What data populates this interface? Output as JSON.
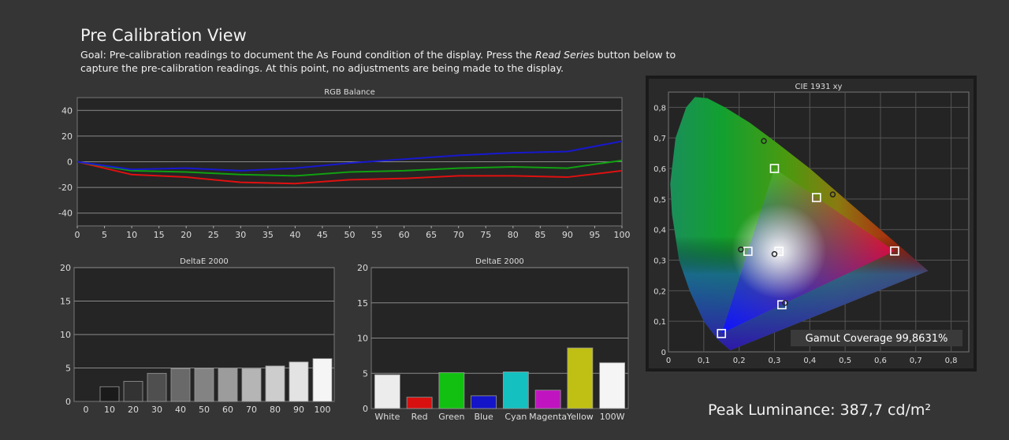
{
  "page": {
    "title": "Pre Calibration View",
    "goal_prefix": "Goal: Pre-calibration readings to document the As Found condition of the display. Press the ",
    "goal_button": "Read Series",
    "goal_suffix": " button below to capture the pre-calibration readings. At this point, no adjustments are being made to the display.",
    "peak_luminance": "Peak Luminance: 387,7 cd/m²"
  },
  "chart_data": [
    {
      "type": "line",
      "title": "RGB Balance",
      "x": [
        0,
        10,
        20,
        30,
        40,
        50,
        60,
        70,
        80,
        90,
        100
      ],
      "xticks": [
        "0",
        "5",
        "10",
        "15",
        "20",
        "25",
        "30",
        "35",
        "40",
        "45",
        "50",
        "55",
        "60",
        "65",
        "70",
        "75",
        "80",
        "85",
        "90",
        "95",
        "100"
      ],
      "yticks": [
        "40",
        "20",
        "0",
        "-20",
        "-40"
      ],
      "xlim": [
        0,
        100
      ],
      "ylim": [
        -50,
        50
      ],
      "grid": true,
      "series": [
        {
          "color": "#e01010",
          "values": [
            0,
            -10,
            -12,
            -16,
            -17,
            -14,
            -13,
            -11,
            -11,
            -12,
            -7
          ]
        },
        {
          "color": "#10a010",
          "values": [
            0,
            -7,
            -8,
            -10,
            -11,
            -8,
            -7,
            -5,
            -4,
            -5,
            1
          ]
        },
        {
          "color": "#1818d0",
          "values": [
            0,
            -6,
            -5,
            -7,
            -5,
            -1,
            2,
            5,
            7,
            8,
            16
          ]
        }
      ]
    },
    {
      "type": "bar",
      "title": "DeltaE 2000",
      "categories": [
        "0",
        "10",
        "20",
        "30",
        "40",
        "50",
        "60",
        "70",
        "80",
        "90",
        "100"
      ],
      "values": [
        0,
        2.2,
        3.0,
        4.2,
        4.9,
        4.9,
        4.9,
        4.9,
        5.3,
        5.9,
        6.4
      ],
      "colors": [
        "#000000",
        "#1a1a1a",
        "#333333",
        "#4f4f4f",
        "#696969",
        "#838383",
        "#9c9c9c",
        "#b5b5b5",
        "#cdcdcd",
        "#e3e3e3",
        "#f5f5f5"
      ],
      "yticks": [
        "20",
        "15",
        "10",
        "5",
        "0"
      ],
      "ylim": [
        0,
        20
      ]
    },
    {
      "type": "bar",
      "title": "DeltaE 2000",
      "categories": [
        "White",
        "Red",
        "Green",
        "Blue",
        "Cyan",
        "Magenta",
        "Yellow",
        "100W"
      ],
      "values": [
        4.8,
        1.6,
        5.1,
        1.8,
        5.2,
        2.6,
        8.6,
        6.5
      ],
      "colors": [
        "#ececec",
        "#d81010",
        "#12c012",
        "#1414c8",
        "#14c0c0",
        "#c014c0",
        "#c0c014",
        "#f5f5f5"
      ],
      "yticks": [
        "20",
        "15",
        "10",
        "5",
        "0"
      ],
      "ylim": [
        0,
        20
      ]
    },
    {
      "type": "scatter",
      "title": "CIE 1931 xy",
      "xticks": [
        "0",
        "0,1",
        "0,2",
        "0,3",
        "0,4",
        "0,5",
        "0,6",
        "0,7",
        "0,8"
      ],
      "yticks": [
        "0,8",
        "0,7",
        "0,6",
        "0,5",
        "0,4",
        "0,3",
        "0,2",
        "0,1",
        "0"
      ],
      "xlim": [
        0,
        0.85
      ],
      "ylim": [
        0,
        0.85
      ],
      "gamut_coverage": "Gamut Coverage 99,8631%",
      "targets": [
        {
          "name": "R",
          "x": 0.64,
          "y": 0.33
        },
        {
          "name": "G",
          "x": 0.3,
          "y": 0.6
        },
        {
          "name": "B",
          "x": 0.15,
          "y": 0.06
        },
        {
          "name": "C",
          "x": 0.225,
          "y": 0.329
        },
        {
          "name": "M",
          "x": 0.321,
          "y": 0.154
        },
        {
          "name": "Y",
          "x": 0.419,
          "y": 0.505
        },
        {
          "name": "W",
          "x": 0.3127,
          "y": 0.329
        }
      ],
      "measured": [
        {
          "x": 0.27,
          "y": 0.69
        },
        {
          "x": 0.465,
          "y": 0.515
        },
        {
          "x": 0.205,
          "y": 0.335
        },
        {
          "x": 0.3,
          "y": 0.32
        },
        {
          "x": 0.33,
          "y": 0.16
        }
      ]
    }
  ]
}
